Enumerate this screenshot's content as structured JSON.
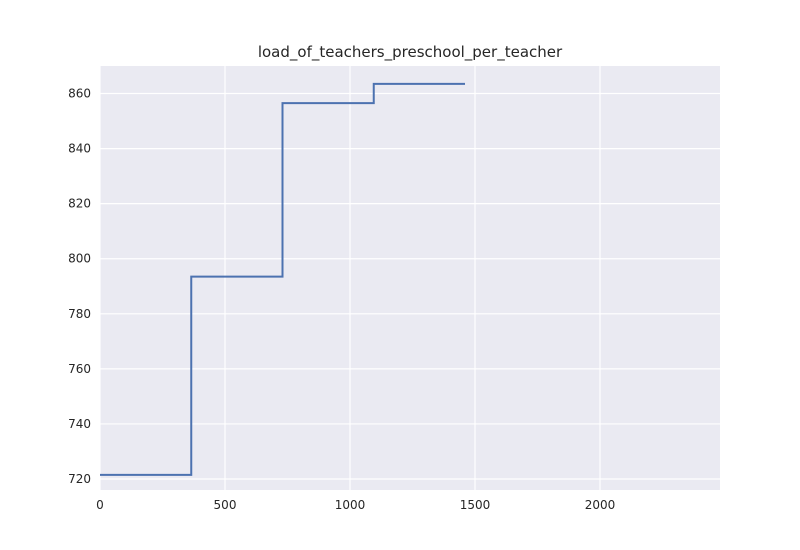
{
  "chart_data": {
    "type": "line",
    "step": "post",
    "title": "load_of_teachers_preschool_per_teacher",
    "xlabel": "",
    "ylabel": "",
    "xlim": [
      0,
      2480
    ],
    "ylim": [
      716,
      870
    ],
    "xticks": [
      0,
      500,
      1000,
      1500,
      2000
    ],
    "yticks": [
      720,
      740,
      760,
      780,
      800,
      820,
      840,
      860
    ],
    "grid": true,
    "background": "#eaeaf2",
    "series": [
      {
        "color": "#4c72b0",
        "x": [
          0,
          365,
          730,
          1095,
          1460
        ],
        "y": [
          721.5,
          793.5,
          856.5,
          863.5,
          863.5
        ]
      }
    ]
  }
}
